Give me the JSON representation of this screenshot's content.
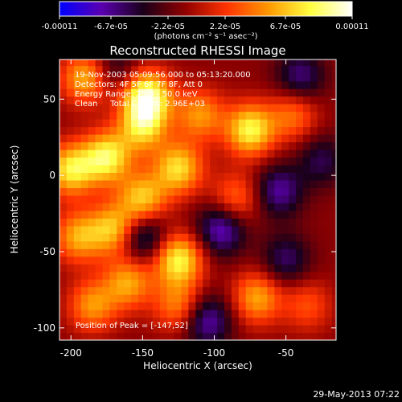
{
  "chart_data": {
    "type": "heatmap",
    "title": "Reconstructed RHESSI Image",
    "xlabel": "Heliocentric X (arcsec)",
    "ylabel": "Heliocentric Y (arcsec)",
    "xlim": [
      -208,
      -15
    ],
    "ylim": [
      -108,
      76
    ],
    "xticks": [
      -200,
      -150,
      -100,
      -50
    ],
    "yticks": [
      -100,
      -50,
      0,
      50
    ],
    "annotations": [
      "19-Nov-2003 05:09:56.000 to 05:13:20.000",
      "Detectors: 4F 5F 6F 7F 8F, Att 0",
      "Energy Range: 25.0 - 50.0 keV",
      "Clean     Total Counts: 2.96E+03"
    ],
    "peak_label": "Position of Peak = [-147,52]",
    "colorbar": {
      "range": [
        -0.00011,
        0.00011
      ],
      "ticks": [
        "-0.00011",
        "-6.7e-05",
        "-2.2e-05",
        "2.2e-05",
        "6.7e-05",
        "0.00011"
      ],
      "units_label": "(photons cm⁻² s⁻¹ asec⁻²)",
      "colormap": [
        "#0000ff",
        "#5a00b0",
        "#1a001a",
        "#900000",
        "#ff3300",
        "#ff9900",
        "#ffff40",
        "#ffffff"
      ]
    },
    "peak": {
      "x": -147,
      "y": 52
    },
    "sources": [
      {
        "x": -147,
        "y": 52,
        "v": 1.0
      },
      {
        "x": -190,
        "y": 64,
        "v": 0.65
      },
      {
        "x": -150,
        "y": 32,
        "v": 0.7
      },
      {
        "x": -110,
        "y": 40,
        "v": 0.55
      },
      {
        "x": -200,
        "y": 4,
        "v": 0.8
      },
      {
        "x": -175,
        "y": 12,
        "v": 0.85
      },
      {
        "x": -125,
        "y": 5,
        "v": 0.75
      },
      {
        "x": -150,
        "y": -15,
        "v": 0.7
      },
      {
        "x": -195,
        "y": -40,
        "v": 0.6
      },
      {
        "x": -170,
        "y": -35,
        "v": 0.7
      },
      {
        "x": -125,
        "y": -55,
        "v": 0.85
      },
      {
        "x": -160,
        "y": -70,
        "v": 0.6
      },
      {
        "x": -185,
        "y": -85,
        "v": 0.55
      },
      {
        "x": -125,
        "y": -85,
        "v": 0.5
      },
      {
        "x": -75,
        "y": 30,
        "v": 0.85
      },
      {
        "x": -45,
        "y": 40,
        "v": 0.45
      },
      {
        "x": -85,
        "y": -15,
        "v": 0.45
      },
      {
        "x": -70,
        "y": -80,
        "v": 0.6
      },
      {
        "x": -35,
        "y": -85,
        "v": 0.35
      },
      {
        "x": -95,
        "y": -35,
        "v": -0.6
      },
      {
        "x": -55,
        "y": -10,
        "v": -0.5
      },
      {
        "x": -40,
        "y": 65,
        "v": -0.45
      },
      {
        "x": -150,
        "y": -40,
        "v": -0.55
      },
      {
        "x": -170,
        "y": 70,
        "v": -0.3
      },
      {
        "x": -105,
        "y": -95,
        "v": -0.55
      },
      {
        "x": -50,
        "y": -55,
        "v": -0.4
      },
      {
        "x": -25,
        "y": 10,
        "v": -0.35
      }
    ]
  },
  "footer": {
    "timestamp": "29-May-2013 07:22"
  }
}
